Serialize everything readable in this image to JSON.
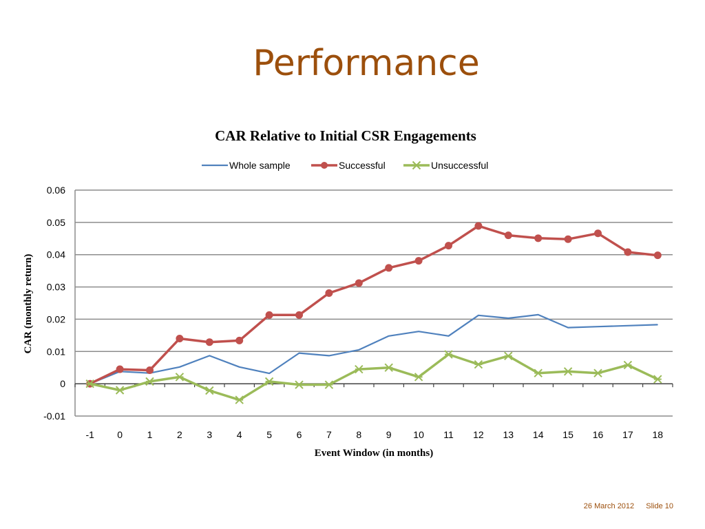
{
  "slide": {
    "title": "Performance",
    "footer_date": "26 March 2012",
    "footer_slide": "Slide 10"
  },
  "colors": {
    "title": "#9c4f0c",
    "whole_sample": "#4f81bd",
    "successful": "#c0504d",
    "unsuccessful": "#9bbb59",
    "grid": "#8c8c8c"
  },
  "chart_data": {
    "type": "line",
    "title": "CAR Relative to Initial CSR Engagements",
    "xlabel": "Event Window (in months)",
    "ylabel": "CAR (monthly return)",
    "x": [
      -1,
      0,
      1,
      2,
      3,
      4,
      5,
      6,
      7,
      8,
      9,
      10,
      11,
      12,
      13,
      14,
      15,
      16,
      17,
      18
    ],
    "ylim": [
      -0.01,
      0.06
    ],
    "yticks": [
      "-0.01",
      "0",
      "0.01",
      "0.02",
      "0.03",
      "0.04",
      "0.05",
      "0.06"
    ],
    "grid": true,
    "legend_position": "top",
    "series": [
      {
        "name": "Whole sample",
        "marker": "none",
        "values": [
          0,
          0.0038,
          0.0033,
          0.0052,
          0.0087,
          0.0052,
          0.0032,
          0.0095,
          0.0087,
          0.0105,
          0.0148,
          0.0162,
          0.0148,
          0.0212,
          0.0203,
          0.0214,
          0.0174,
          0.0177,
          0.018,
          0.0183
        ]
      },
      {
        "name": "Successful",
        "marker": "circle",
        "values": [
          0,
          0.0045,
          0.0042,
          0.014,
          0.0129,
          0.0134,
          0.0213,
          0.0213,
          0.0281,
          0.0312,
          0.0359,
          0.0381,
          0.0428,
          0.0489,
          0.046,
          0.0451,
          0.0448,
          0.0466,
          0.0408,
          0.0398
        ]
      },
      {
        "name": "Unsuccessful",
        "marker": "star",
        "values": [
          0,
          -0.002,
          0.0007,
          0.0021,
          -0.0021,
          -0.005,
          0.0007,
          -0.0003,
          -0.0003,
          0.0045,
          0.005,
          0.0021,
          0.0091,
          0.006,
          0.0086,
          0.0033,
          0.0038,
          0.0033,
          0.0058,
          0.0014
        ]
      }
    ]
  }
}
